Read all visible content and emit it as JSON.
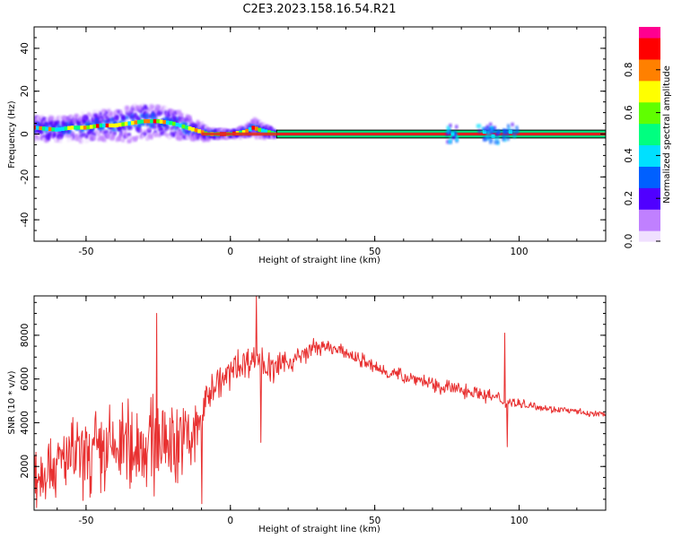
{
  "title": "C2E3.2023.158.16.54.R21",
  "colorbar": {
    "label": "Normalized spectral amplitude",
    "ticks": [
      "0.0",
      "0.2",
      "0.4",
      "0.6",
      "0.8"
    ],
    "tick_values": [
      0.0,
      0.2,
      0.4,
      0.6,
      0.8
    ],
    "range": [
      0,
      1
    ],
    "colormap": "rainbow",
    "colors": [
      "#f0e0ff",
      "#c080ff",
      "#5000ff",
      "#0060ff",
      "#00e0ff",
      "#00ff80",
      "#60ff00",
      "#ffff00",
      "#ff8000",
      "#ff0000",
      "#ff0090"
    ]
  },
  "chart_data": [
    {
      "type": "heatmap",
      "xlabel": "Height of straight line (km)",
      "ylabel": "Frequency (Hz)",
      "xlim": [
        -68,
        130
      ],
      "ylim": [
        -50,
        50
      ],
      "x_ticks": [
        -50,
        0,
        50,
        100
      ],
      "x_tick_labels": [
        "-50",
        "0",
        "50",
        "100"
      ],
      "y_ticks": [
        -40,
        -20,
        0,
        20,
        40
      ],
      "y_tick_labels": [
        "-40",
        "-20",
        "0",
        "20",
        "40"
      ],
      "band_box": {
        "x_from": 16,
        "x_to": 130,
        "f_low": -1,
        "f_high": 1
      },
      "ridge": {
        "x": [
          -68,
          -60,
          -55,
          -50,
          -45,
          -40,
          -35,
          -30,
          -25,
          -20,
          -15,
          -10,
          -8,
          0,
          5,
          8,
          10,
          13,
          16
        ],
        "freq": [
          3,
          2,
          3,
          3,
          4,
          4,
          5,
          6,
          6,
          5,
          3,
          1,
          0,
          0,
          1,
          3,
          2,
          1,
          0
        ],
        "spread": [
          4,
          4,
          4,
          5,
          5,
          5,
          6,
          6,
          5,
          5,
          4,
          3,
          2,
          1,
          2,
          3,
          3,
          2,
          1
        ]
      },
      "bursts": [
        {
          "x": 77,
          "freq": 0
        },
        {
          "x": 88,
          "freq": 1
        },
        {
          "x": 91,
          "freq": -1
        },
        {
          "x": 97,
          "freq": 1
        }
      ]
    },
    {
      "type": "line",
      "xlabel": "Height of straight line (km)",
      "ylabel": "SNR (10 * v/v)",
      "xlim": [
        -68,
        130
      ],
      "ylim": [
        0,
        9800
      ],
      "x_ticks": [
        -50,
        0,
        50,
        100
      ],
      "x_tick_labels": [
        "-50",
        "0",
        "50",
        "100"
      ],
      "y_ticks": [
        2000,
        4000,
        6000,
        8000
      ],
      "y_tick_labels": [
        "2000",
        "4000",
        "6000",
        "8000"
      ],
      "line_color": "#e83030",
      "series": [
        {
          "x": [
            -68,
            -64,
            -60,
            -56,
            -52,
            -48,
            -44,
            -40,
            -36,
            -32,
            -28,
            -24,
            -20,
            -16,
            -12,
            -8,
            -6,
            -3,
            0,
            3,
            6,
            9,
            12,
            15,
            18,
            21,
            25,
            30,
            35,
            40,
            45,
            50,
            55,
            60,
            65,
            70,
            75,
            80,
            85,
            90,
            95,
            98,
            100,
            105,
            110,
            115,
            120,
            125,
            130
          ],
          "values": [
            1500,
            2200,
            2000,
            2300,
            2400,
            2500,
            2600,
            2800,
            2800,
            3000,
            2900,
            3100,
            3300,
            3200,
            3400,
            5200,
            5700,
            5900,
            6300,
            6600,
            6900,
            7000,
            6600,
            6400,
            6700,
            6800,
            7100,
            7500,
            7400,
            7200,
            6900,
            6500,
            6300,
            6100,
            6000,
            5700,
            5600,
            5500,
            5400,
            5200,
            5000,
            4900,
            4850,
            4800,
            4650,
            4600,
            4500,
            4400,
            4400
          ],
          "jitter": [
            1300,
            1400,
            1500,
            1500,
            1600,
            1600,
            1700,
            1800,
            1800,
            1900,
            1900,
            1900,
            2000,
            2000,
            2000,
            700,
            600,
            600,
            650,
            650,
            700,
            650,
            600,
            550,
            500,
            450,
            400,
            350,
            300,
            300,
            300,
            280,
            280,
            280,
            280,
            300,
            300,
            300,
            300,
            300,
            280,
            250,
            200,
            170,
            160,
            150,
            140,
            130,
            130
          ]
        }
      ],
      "spikes": [
        {
          "x": -25.5,
          "value": 9000
        },
        {
          "x": 9,
          "value": 9800
        },
        {
          "x": 10.5,
          "value": 3100
        },
        {
          "x": 95,
          "value": 8100
        },
        {
          "x": 95.8,
          "value": 2900
        },
        {
          "x": -10,
          "value": 300
        }
      ]
    }
  ]
}
